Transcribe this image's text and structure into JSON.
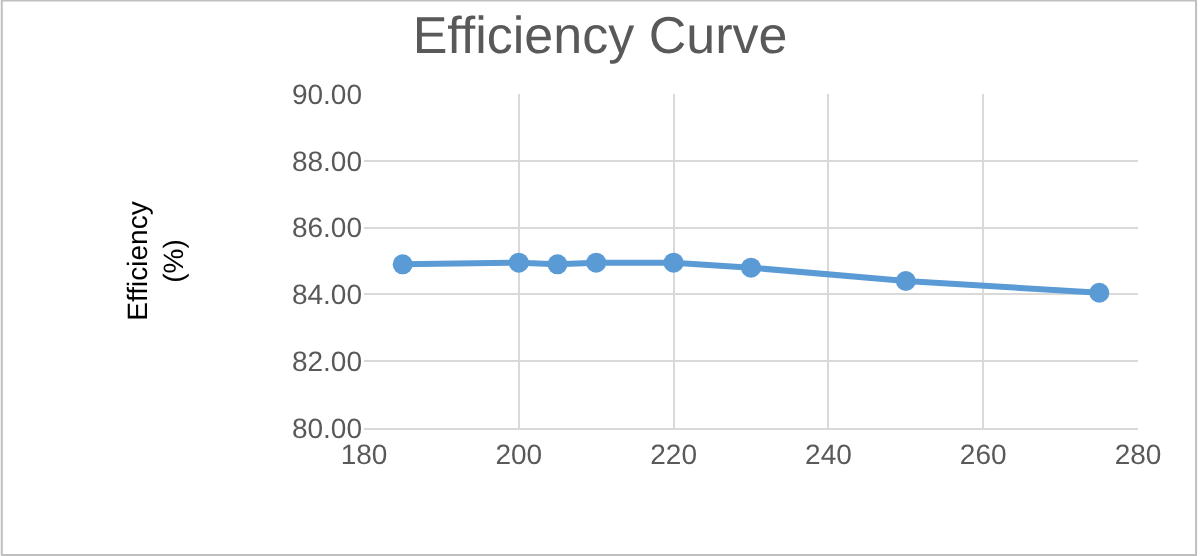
{
  "chart_data": {
    "type": "line",
    "title": "Efficiency Curve",
    "ylabel": "Efficiency\n(%)",
    "x": [
      185,
      200,
      205,
      210,
      220,
      230,
      250,
      275
    ],
    "series": [
      {
        "color": "#5b9bd5",
        "values": [
          84.9,
          84.95,
          84.9,
          84.95,
          84.95,
          84.8,
          84.4,
          84.05
        ]
      }
    ],
    "xlim": [
      180,
      280
    ],
    "xticks": [
      180,
      200,
      220,
      240,
      260,
      280
    ],
    "ylim": [
      80,
      90
    ],
    "yticks": [
      {
        "value": 80,
        "label": "80.00"
      },
      {
        "value": 82,
        "label": "82.00"
      },
      {
        "value": 84,
        "label": "84.00"
      },
      {
        "value": 86,
        "label": "86.00"
      },
      {
        "value": 88,
        "label": "88.00"
      },
      {
        "value": 90,
        "label": "90.00"
      }
    ],
    "grid": true,
    "marker": "circle",
    "line_style": "solid",
    "legend": false
  }
}
